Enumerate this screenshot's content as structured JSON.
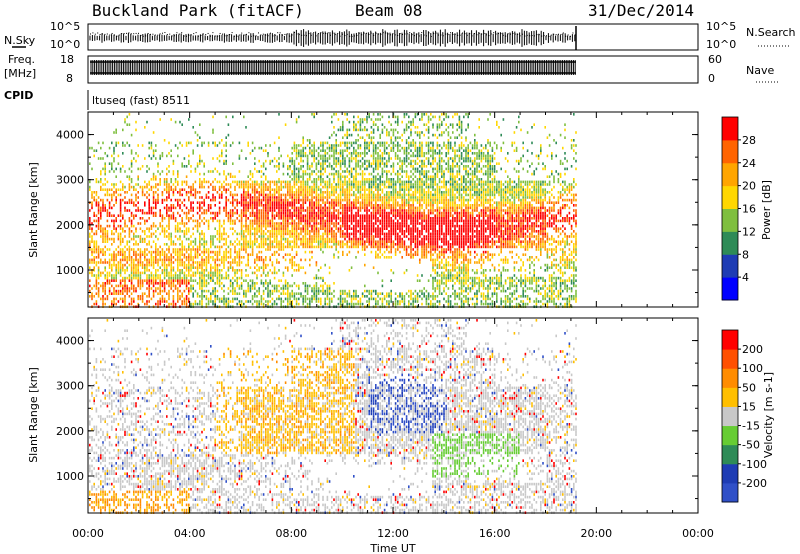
{
  "header": {
    "station": "Buckland Park (fitACF)",
    "beam": "Beam 08",
    "date": "31/Dec/2014"
  },
  "noise_panel": {
    "left_label": "N.Sky",
    "left_ticks": [
      "10^5",
      "10^0"
    ],
    "right_ticks": [
      "10^5",
      "10^0"
    ],
    "right_label": "N.Search"
  },
  "freq_panel": {
    "left_label_1": "Freq.",
    "left_label_2": "[MHz]",
    "left_ticks": [
      "18",
      "8"
    ],
    "right_ticks": [
      "60",
      "0"
    ],
    "right_label": "Nave"
  },
  "cpid": {
    "label": "CPID",
    "value": "ltuseq (fast) 8511"
  },
  "chart_data": [
    {
      "type": "heatmap",
      "parameter": "Power",
      "ylabel": "Slant Range [km]",
      "yticks": [
        "4000",
        "3000",
        "2000",
        "1000"
      ],
      "ylim": [
        180,
        4500
      ],
      "xlim": [
        0,
        24
      ],
      "data_end_hour": 19.2,
      "colorbar_label": "Power [dB]",
      "colorbar_ticks": [
        "28",
        "24",
        "20",
        "16",
        "12",
        "8",
        "4"
      ],
      "colorbar_colors": [
        "#0000ff",
        "#1e3cb4",
        "#2e8b57",
        "#7fbf3f",
        "#ffd700",
        "#ffa500",
        "#ff6400",
        "#ff0000"
      ],
      "colorbar_range": [
        0,
        32
      ]
    },
    {
      "type": "heatmap",
      "parameter": "Velocity",
      "ylabel": "Slant Range [km]",
      "yticks": [
        "4000",
        "3000",
        "2000",
        "1000"
      ],
      "ylim": [
        180,
        4500
      ],
      "xlim": [
        0,
        24
      ],
      "data_end_hour": 19.2,
      "colorbar_label": "Velocity [m s-1]",
      "colorbar_ticks": [
        "200",
        "100",
        "50",
        "15",
        "-15",
        "-50",
        "-100",
        "-200"
      ],
      "colorbar_colors": [
        "#3050c8",
        "#1e3cb4",
        "#2e8b57",
        "#66cc33",
        "#c8c8c8",
        "#ffbf00",
        "#ff8c00",
        "#ff5000",
        "#ff0000"
      ],
      "colorbar_range": [
        -250,
        250
      ]
    }
  ],
  "x_axis": {
    "ticks": [
      "00:00",
      "04:00",
      "08:00",
      "12:00",
      "16:00",
      "20:00",
      "00:00"
    ],
    "label": "Time UT"
  }
}
